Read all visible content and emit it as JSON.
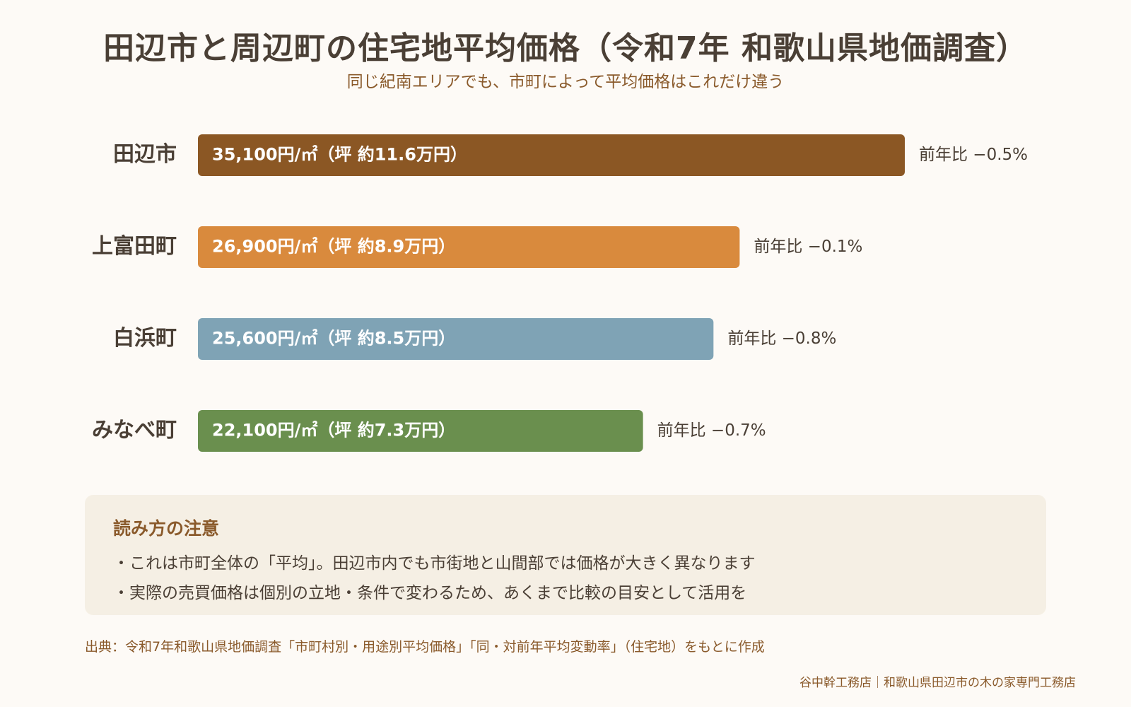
{
  "header": {
    "title": "田辺市と周辺町の住宅地平均価格（令和7年 和歌山県地価調査）",
    "subtitle": "同じ紀南エリアでも、市町によって平均価格はこれだけ違う"
  },
  "chart_data": {
    "type": "bar",
    "orientation": "horizontal",
    "categories": [
      "田辺市",
      "上富田町",
      "白浜町",
      "みなべ町"
    ],
    "values": [
      35100,
      26900,
      25600,
      22100
    ],
    "unit": "円/㎡",
    "bar_labels": [
      "35,100円/㎡（坪 約11.6万円）",
      "26,900円/㎡（坪 約8.9万円）",
      "25,600円/㎡（坪 約8.5万円）",
      "22,100円/㎡（坪 約7.3万円）"
    ],
    "change_labels": [
      "前年比 −0.5%",
      "前年比 −0.1%",
      "前年比 −0.8%",
      "前年比 −0.7%"
    ],
    "yoy_change_percent": [
      -0.5,
      -0.1,
      -0.8,
      -0.7
    ],
    "colors": [
      "#8b5724",
      "#d98a3d",
      "#7fa3b5",
      "#6a8f4e"
    ],
    "title": "田辺市と周辺町の住宅地平均価格（令和7年 和歌山県地価調査）",
    "xlabel": "",
    "ylabel": "",
    "grid": false,
    "legend": "none"
  },
  "notes": {
    "title": "読み方の注意",
    "lines": [
      "・これは市町全体の「平均」。田辺市内でも市街地と山間部では価格が大きく異なります",
      "・実際の売買価格は個別の立地・条件で変わるため、あくまで比較の目安として活用を"
    ]
  },
  "source": "出典：令和7年和歌山県地価調査「市町村別・用途別平均価格」「同・対前年平均変動率」（住宅地）をもとに作成",
  "footer": "谷中幹工務店｜和歌山県田辺市の木の家専門工務店"
}
